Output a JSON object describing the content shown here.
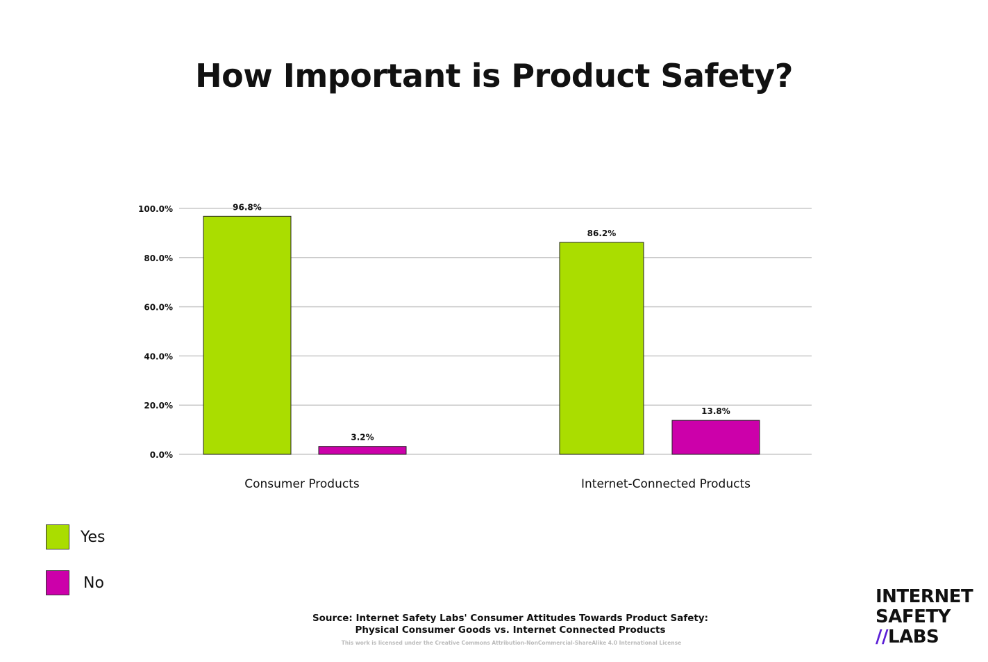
{
  "chart_data": {
    "type": "bar",
    "title": "How Important is Product Safety?",
    "categories": [
      "Consumer Products",
      "Internet-Connected Products"
    ],
    "series": [
      {
        "name": "Yes",
        "values": [
          96.8,
          86.2
        ],
        "labels": [
          "96.8%",
          "86.2%"
        ],
        "color": "#aadd00"
      },
      {
        "name": "No",
        "values": [
          3.2,
          13.8
        ],
        "labels": [
          "3.2%",
          "13.8%"
        ],
        "color": "#cc00aa"
      }
    ],
    "ylim": [
      0,
      100
    ],
    "yticks": [
      0,
      20,
      40,
      60,
      80,
      100
    ],
    "ytick_labels": [
      "0.0%",
      "20.0%",
      "40.0%",
      "60.0%",
      "80.0%",
      "100.0%"
    ],
    "xlabel": "",
    "ylabel": "",
    "grid": true,
    "legend": "bottom-left"
  },
  "footer": {
    "source_line1": "Source: Internet Safety Labs' Consumer Attitudes Towards Product Safety:",
    "source_line2": "Physical Consumer Goods vs. Internet Connected Products",
    "license": "This work is licensed under the Creative Commons Attribution-NonCommercial-ShareAlike 4.0 International License"
  },
  "logo": {
    "line1": "INTERNET",
    "line2": "SAFETY",
    "line3_slashes": "//",
    "line3": "LABS"
  }
}
